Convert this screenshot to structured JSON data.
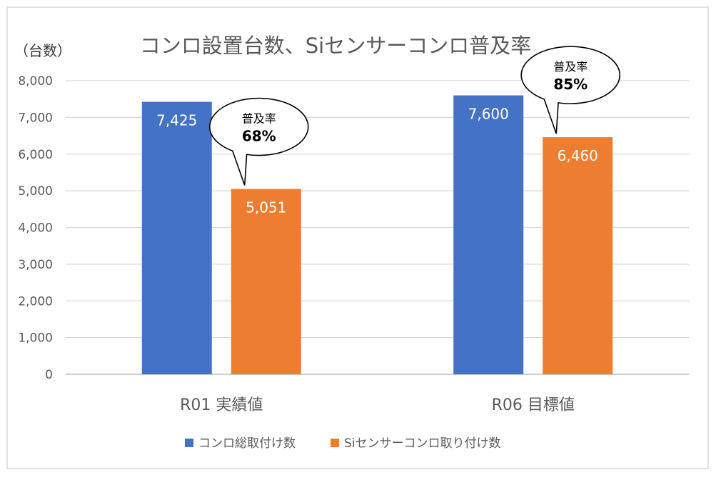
{
  "chart_data": {
    "type": "bar",
    "title": "コンロ設置台数、Siセンサーコンロ普及率",
    "ylabel": "（台数）",
    "xlabel": "",
    "ylim": [
      0,
      8000
    ],
    "yticks": [
      "0",
      "1,000",
      "2,000",
      "3,000",
      "4,000",
      "5,000",
      "6,000",
      "7,000",
      "8,000"
    ],
    "ytick_values": [
      0,
      1000,
      2000,
      3000,
      4000,
      5000,
      6000,
      7000,
      8000
    ],
    "grid": true,
    "legend_position": "bottom",
    "categories": [
      "R01 実績値",
      "R06 目標値"
    ],
    "series": [
      {
        "name": "コンロ総取付け数",
        "color": "#4472C4",
        "values": [
          7425,
          7600
        ],
        "labels": [
          "7,425",
          "7,600"
        ]
      },
      {
        "name": "Siセンサーコンロ取り付け数",
        "color": "#ED7D31",
        "values": [
          5051,
          6460
        ],
        "labels": [
          "5,051",
          "6,460"
        ]
      }
    ],
    "annotations": [
      {
        "label": "普及率",
        "value": "68%"
      },
      {
        "label": "普及率",
        "value": "85%"
      }
    ]
  }
}
